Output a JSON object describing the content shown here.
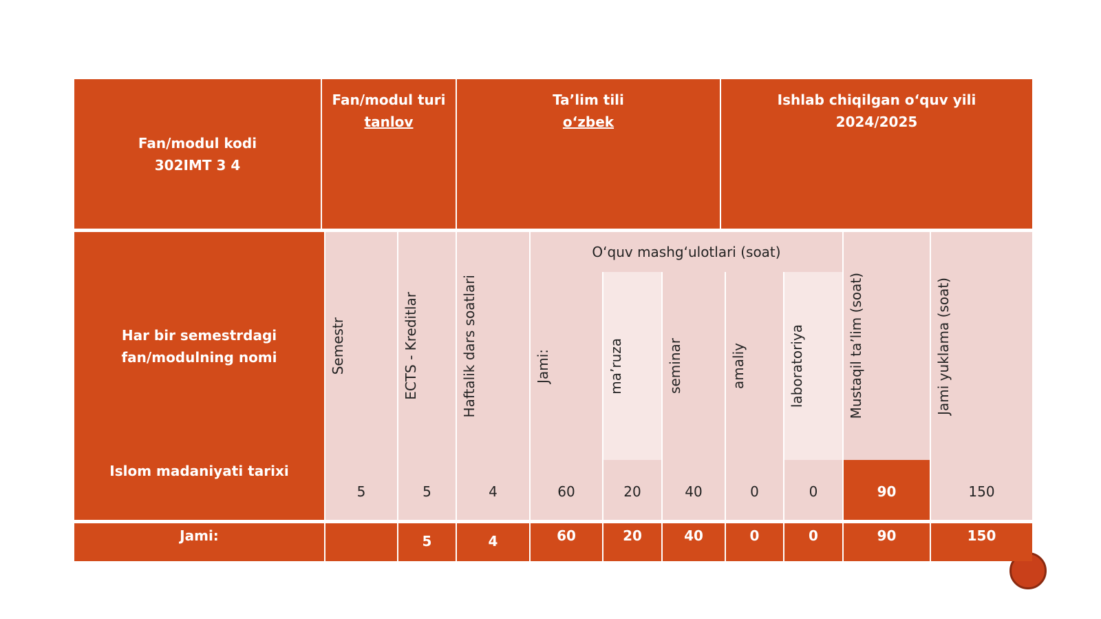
{
  "header": [
    {
      "label": "Fan/modul kodi",
      "value": "302IMT 3 4"
    },
    {
      "label": "Fan/modul turi",
      "value": "tanlov"
    },
    {
      "label": "Ta’lim tili",
      "value": "o‘zbek"
    },
    {
      "label": "Ishlab chiqilgan o‘quv yili",
      "value": "2024/2025"
    }
  ],
  "table": {
    "name_header": "Har bir semestrdagi fan/modulning nomi",
    "columns": [
      "Semestr",
      "ECTS - Kreditlar",
      "Haftalik dars soatlari"
    ],
    "group": "O‘quv mashg‘ulotlari (soat)",
    "group_columns": [
      "Jami:",
      "ma’ruza",
      "seminar",
      "amaliy",
      "laboratoriya"
    ],
    "tail_columns": [
      "Mustaqil ta’lim (soat)",
      "Jami yuklama (soat)"
    ],
    "rows": [
      [
        "Islom madaniyati tarixi",
        5,
        5,
        4,
        60,
        20,
        40,
        0,
        0,
        90,
        150
      ],
      [
        "Jami:",
        null,
        5,
        4,
        60,
        20,
        40,
        0,
        0,
        90,
        150
      ]
    ]
  }
}
